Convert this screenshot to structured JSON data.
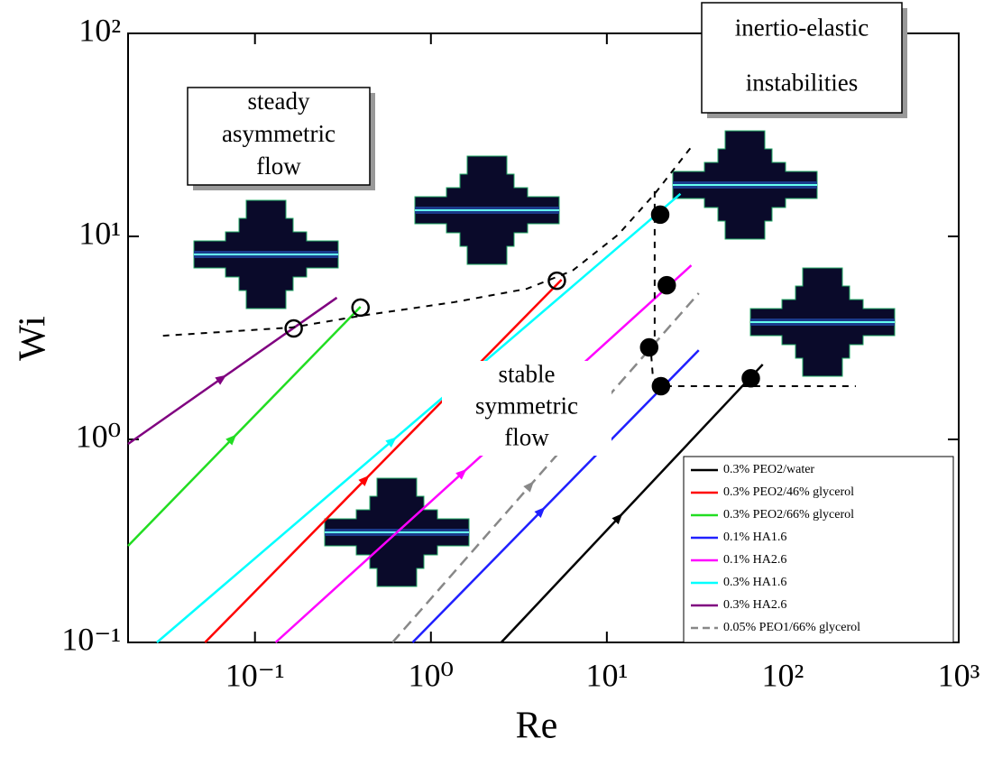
{
  "chart_data": {
    "type": "line",
    "xlabel": "Re",
    "ylabel": "Wi",
    "xscale": "log",
    "yscale": "log",
    "xlim": [
      0.019,
      1000
    ],
    "ylim": [
      0.1,
      100
    ],
    "xticks": [
      {
        "value": 0.1,
        "label": "10⁻¹"
      },
      {
        "value": 1,
        "label": "10⁰"
      },
      {
        "value": 10,
        "label": "10¹"
      },
      {
        "value": 100,
        "label": "10²"
      },
      {
        "value": 1000,
        "label": "10³"
      }
    ],
    "yticks": [
      {
        "value": 0.1,
        "label": "10⁻¹"
      },
      {
        "value": 1,
        "label": "10⁰"
      },
      {
        "value": 10,
        "label": "10¹"
      },
      {
        "value": 100,
        "label": "10²"
      }
    ],
    "series": [
      {
        "name": "0.3% PEO2/water",
        "color": "#000000",
        "dashed": false,
        "x": [
          2.51,
          76.9
        ],
        "y": [
          0.1,
          2.34
        ]
      },
      {
        "name": "0.3% PEO2/46% glycerol",
        "color": "#ff0000",
        "dashed": false,
        "x": [
          0.052,
          5.53
        ],
        "y": [
          0.1,
          6.12
        ]
      },
      {
        "name": "0.3% PEO2/66% glycerol",
        "color": "#22dd22",
        "dashed": false,
        "x": [
          0.019,
          0.398
        ],
        "y": [
          0.299,
          4.5
        ]
      },
      {
        "name": "0.1% HA1.6",
        "color": "#2020ff",
        "dashed": false,
        "x": [
          0.787,
          33.3
        ],
        "y": [
          0.1,
          2.75
        ]
      },
      {
        "name": "0.1% HA2.6",
        "color": "#ff00ff",
        "dashed": false,
        "x": [
          0.131,
          30.2
        ],
        "y": [
          0.1,
          7.2
        ]
      },
      {
        "name": "0.3% HA1.6",
        "color": "#00ffff",
        "dashed": false,
        "x": [
          0.0277,
          26.2
        ],
        "y": [
          0.1,
          16.2
        ]
      },
      {
        "name": "0.3% HA2.6",
        "color": "#800080",
        "dashed": false,
        "x": [
          0.019,
          0.292
        ],
        "y": [
          0.95,
          4.99
        ]
      },
      {
        "name": "0.05% PEO1/66% glycerol",
        "color": "#888888",
        "dashed": true,
        "x": [
          0.605,
          33.3
        ],
        "y": [
          0.1,
          5.25
        ]
      }
    ],
    "boundaries": [
      {
        "x": [
          0.03,
          0.162,
          0.398,
          1.35,
          3.51,
          6.38,
          11.6,
          18.7,
          31.0
        ],
        "y": [
          3.24,
          3.56,
          4.06,
          4.74,
          5.52,
          6.78,
          10.2,
          16.2,
          28.4
        ]
      },
      {
        "x": [
          18.7,
          18.7,
          17.9,
          18.3,
          22.5,
          260
        ],
        "y": [
          16.7,
          2.99,
          2.56,
          1.99,
          1.83,
          1.83
        ]
      }
    ],
    "open_points": {
      "x": [
        0.166,
        0.398,
        5.2
      ],
      "y": [
        3.52,
        4.46,
        6.05
      ]
    },
    "filled_points": {
      "x": [
        20.1,
        21.9,
        17.4,
        20.3,
        65.8
      ],
      "y": [
        12.8,
        5.75,
        2.84,
        1.83,
        2.0
      ]
    },
    "annotations": [
      {
        "lines": [
          "steady",
          "asymmetric",
          "flow"
        ]
      },
      {
        "lines": [
          "inertio-elastic",
          "instabilities"
        ]
      },
      {
        "lines": [
          "stable",
          "symmetric",
          "flow"
        ]
      }
    ]
  }
}
